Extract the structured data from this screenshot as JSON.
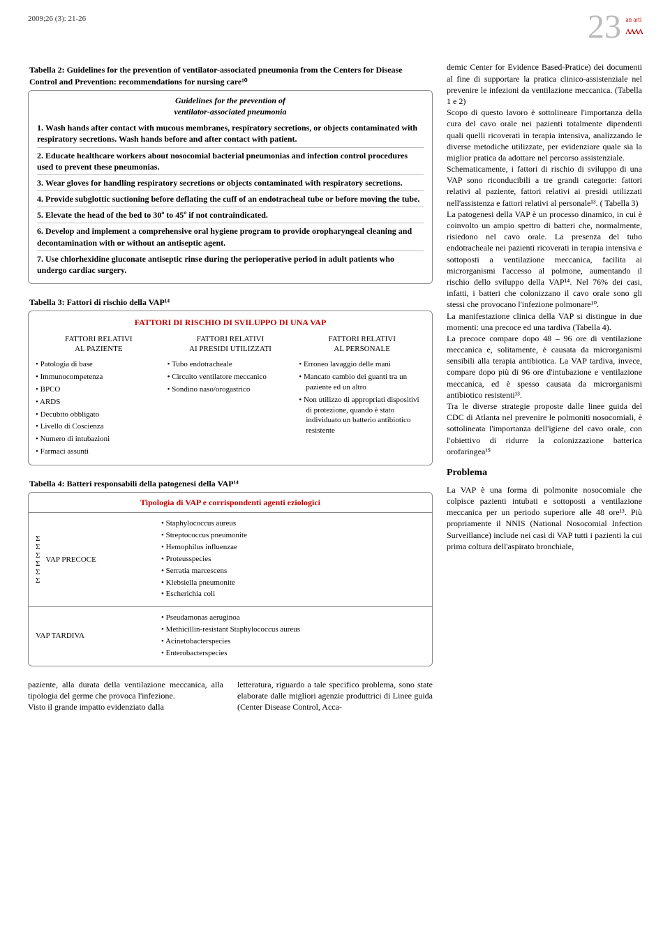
{
  "header": {
    "issue": "2009;26 (3): 21-26",
    "page": "23",
    "logo_text": "an arti"
  },
  "table2": {
    "title": "Tabella 2: Guidelines for the prevention of ventilator-associated pneumonia from the Centers for Disease Control and Prevention: recommendations for nursing care¹⁰",
    "heading_l1": "Guidelines for the prevention of",
    "heading_l2": "ventilator-associated pneumonia",
    "rows": [
      {
        "n": "1.",
        "t": "Wash hands after contact with mucous membranes, respiratory secretions, or objects contaminated with respiratory secretions. Wash hands before and after contact with patient."
      },
      {
        "n": "2.",
        "t": "Educate healthcare workers about nosocomial bacterial pneumonias and infection control procedures used to prevent these pneumonias."
      },
      {
        "n": "3.",
        "t": "Wear gloves for handling respiratory secretions or objects contaminated with respiratory secretions."
      },
      {
        "n": "4.",
        "t": "Provide subglottic suctioning before deflating the cuff of an endotracheal tube or before moving the tube."
      },
      {
        "n": "5.",
        "t": "Elevate the head of the bed to 30º to 45º if not contraindicated."
      },
      {
        "n": "6.",
        "t": "Develop and implement a comprehensive oral hygiene program to provide oropharyngeal cleaning and decontamination with or without an antiseptic agent."
      },
      {
        "n": "7.",
        "t": "Use chlorhexidine gluconate antiseptic rinse during the perioperative period in adult patients who undergo cardiac surgery."
      }
    ]
  },
  "table3": {
    "title": "Tabella 3: Fattori di rischio della VAP¹⁴",
    "heading": "FATTORI DI RISCHIO DI SVILUPPO DI UNA VAP",
    "cols": [
      {
        "h1": "FATTORI RELATIVI",
        "h2": "AL PAZIENTE",
        "items": [
          "Patologia di base",
          "Immunocompetenza",
          "BPCO",
          "ARDS",
          "Decubito obbligato",
          "Livello di Coscienza",
          "Numero di intubazioni",
          "Farmaci assunti"
        ]
      },
      {
        "h1": "FATTORI RELATIVI",
        "h2": "AI PRESIDI UTILIZZATI",
        "items": [
          "Tubo endotracheale",
          "Circuito ventilatore meccanico",
          "Sondino naso/orogastrico"
        ]
      },
      {
        "h1": "FATTORI RELATIVI",
        "h2": "AL PERSONALE",
        "items": [
          "Erroneo lavaggio delle mani",
          "Mancato cambio dei guanti tra un paziente ed un altro",
          "Non utilizzo di appropriati dispositivi di protezione, quando è stato individuato un batterio antibiotico resistente"
        ]
      }
    ]
  },
  "table4": {
    "title": "Tabella 4: Batteri responsabili della patogenesi della VAP¹⁴",
    "heading": "Tipologia di VAP e corrispondenti agenti eziologici",
    "rows": [
      {
        "label": "VAP PRECOCE",
        "sigma": true,
        "items": [
          "Staphylococcus aureus",
          "Streptococcus pneumonite",
          "Hemophilus influenzae",
          "Proteusspecies",
          "Serratia marcescens",
          "Klebsiella pneumonite",
          "Escherichia coli"
        ]
      },
      {
        "label": "VAP TARDIVA",
        "sigma": false,
        "items": [
          "Pseudamonas aeruginoa",
          "Methicillin-resistant Staphylococcus aureus",
          "Acinetobacterspecies",
          "Enterobacterspecies"
        ]
      }
    ]
  },
  "bottom": {
    "c1": "paziente, alla durata della ventilazione meccanica, alla tipologia del germe che provoca l'infezione.\nVisto il grande impatto evidenziato dalla",
    "c2": "letteratura, riguardo a tale specifico problema, sono state elaborate dalle migliori agenzie produttrici di Linee guida (Center Disease Control, Acca-"
  },
  "right": {
    "p1": "demic Center for Evidence Based-Pratice) dei documenti al fine di supportare la pratica clinico-assistenziale nel prevenire le infezioni da ventilazione meccanica. (Tabella 1 e 2)",
    "p2": "Scopo di questo lavoro è sottolineare l'importanza della cura del cavo orale nei pazienti totalmente dipendenti quali quelli ricoverati in terapia intensiva, analizzando le diverse metodiche utilizzate, per evidenziare quale sia la miglior pratica da adottare nel percorso assistenziale.",
    "p3": "Schematicamente, i fattori di rischio di sviluppo di una VAP sono riconducibili a tre grandi categorie: fattori relativi al paziente, fattori relativi ai presidi utilizzati nell'assistenza e fattori relativi al personale¹³. ( Tabella 3)",
    "p4": "La patogenesi della VAP è un processo dinamico, in cui è coinvolto un ampio spettro di batteri che, normalmente, risiedono nel cavo orale. La presenza del tubo endotracheale nei pazienti ricoverati in terapia intensiva e sottoposti a ventilazione meccanica, facilita ai microrganismi l'accesso al polmone, aumentando il rischio dello sviluppo della VAP¹⁴. Nel 76% dei casi, infatti, i batteri che colonizzano il cavo orale sono gli stessi che provocano l'infezione polmonare¹⁰.",
    "p5": "La manifestazione clinica della VAP si distingue in due momenti: una precoce ed una tardiva (Tabella 4).",
    "p6": "La precoce compare dopo 48 – 96 ore di ventilazione meccanica e, solitamente, è causata da microrganismi sensibili alla terapia antibiotica. La VAP tardiva, invece, compare dopo più di 96 ore d'intubazione e ventilazione meccanica, ed è spesso causata da microrganismi antibiotico resistenti¹³.",
    "p7": "Tra le diverse strategie proposte dalle linee guida del CDC di Atlanta nel prevenire le polmoniti nosocomiali, è sottolineata l'importanza dell'igiene del cavo orale, con l'obiettivo di ridurre la colonizzazione batterica orofaringea¹⁵",
    "h_problema": "Problema",
    "p8": "La VAP è una forma di polmonite nosocomiale che colpisce pazienti intubati e sottoposti a ventilazione meccanica per un periodo superiore alle 48 ore¹³. Più propriamente il NNIS (National Nosocomial Infection Surveillance) include nei casi di VAP tutti i pazienti la cui prima coltura dell'aspirato bronchiale,"
  },
  "style": {
    "accent": "#c40000",
    "border": "#888888",
    "text": "#000000",
    "pagenum": "#bbbbbb"
  }
}
